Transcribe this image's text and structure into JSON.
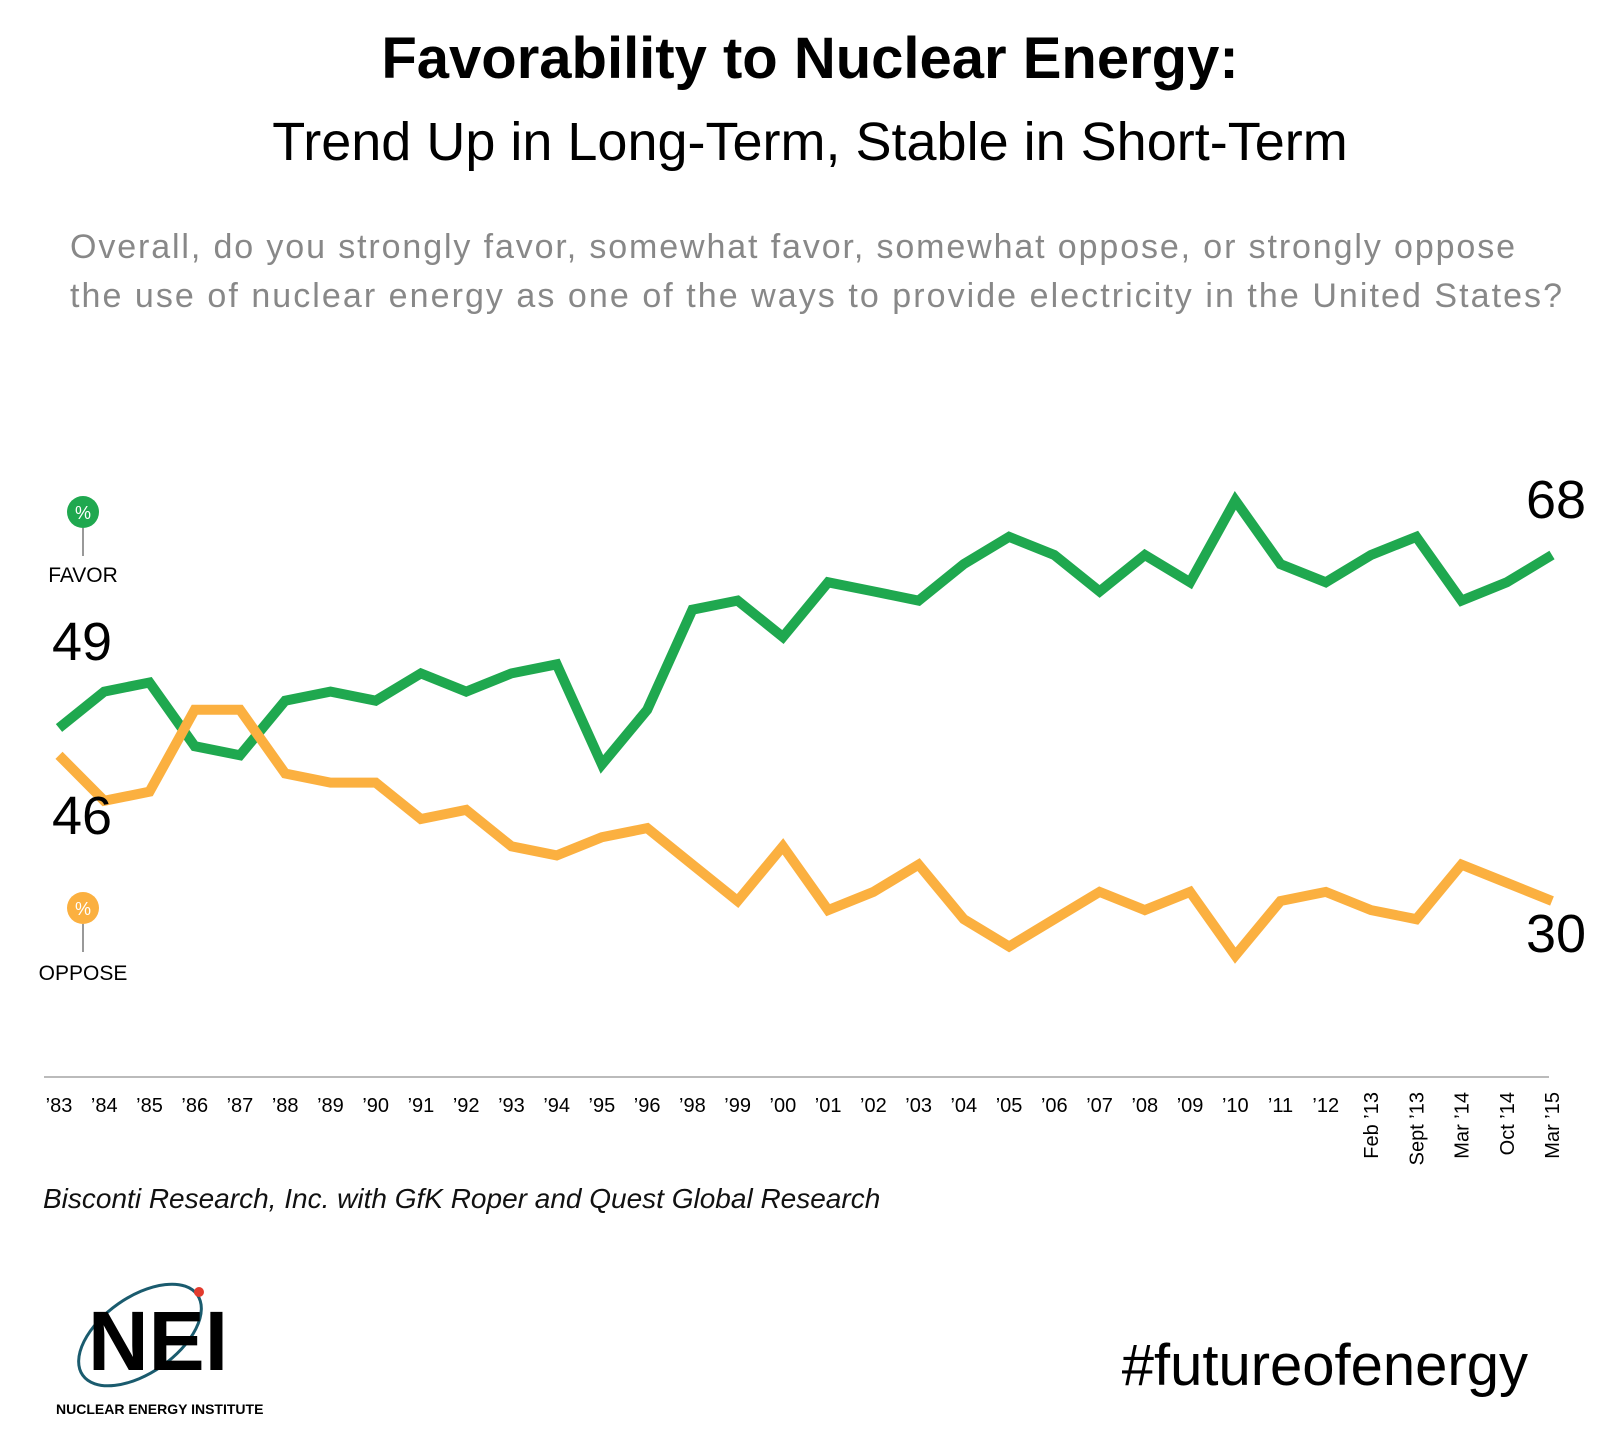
{
  "chart_data": {
    "type": "line",
    "title": "Favorability to Nuclear Energy:",
    "subtitle": "Trend Up in Long-Term, Stable in Short-Term",
    "question": [
      "Overall, do you strongly favor, somewhat favor, somewhat oppose, or strongly oppose",
      "the use of nuclear energy as one of the ways to provide electricity in the United States?"
    ],
    "unit_symbol": "%",
    "categories": [
      "’83",
      "’84",
      "’85",
      "’86",
      "’87",
      "’88",
      "’89",
      "’90",
      "’91",
      "’92",
      "’93",
      "’94",
      "’95",
      "’96",
      "’98",
      "’99",
      "’00",
      "’01",
      "’02",
      "’03",
      "’04",
      "’05",
      "’06",
      "’07",
      "’08",
      "’09",
      "’10",
      "’11",
      "’12",
      "Feb ’13",
      "Sept ’13",
      "Mar ’14",
      "Oct ’14",
      "Mar ’15"
    ],
    "series": [
      {
        "name": "FAVOR",
        "color": "#1fa84f",
        "values": [
          49,
          53,
          54,
          47,
          46,
          52,
          53,
          52,
          55,
          53,
          55,
          56,
          45,
          51,
          62,
          63,
          59,
          65,
          64,
          63,
          67,
          70,
          68,
          64,
          68,
          65,
          74,
          67,
          65,
          68,
          70,
          63,
          65,
          68
        ]
      },
      {
        "name": "OPPOSE",
        "color": "#fbb040",
        "values": [
          46,
          41,
          42,
          51,
          51,
          44,
          43,
          43,
          39,
          40,
          36,
          35,
          37,
          38,
          34,
          30,
          36,
          29,
          31,
          34,
          28,
          25,
          28,
          31,
          29,
          31,
          24,
          30,
          31,
          29,
          28,
          34,
          32,
          30
        ]
      }
    ],
    "ylim": [
      20,
      78
    ],
    "source": "Bisconti Research, Inc. with GfK Roper and Quest Global Research",
    "logo": {
      "mark": "NEI",
      "name": "NUCLEAR ENERGY INSTITUTE"
    },
    "hashtag": "#futureofenergy"
  }
}
